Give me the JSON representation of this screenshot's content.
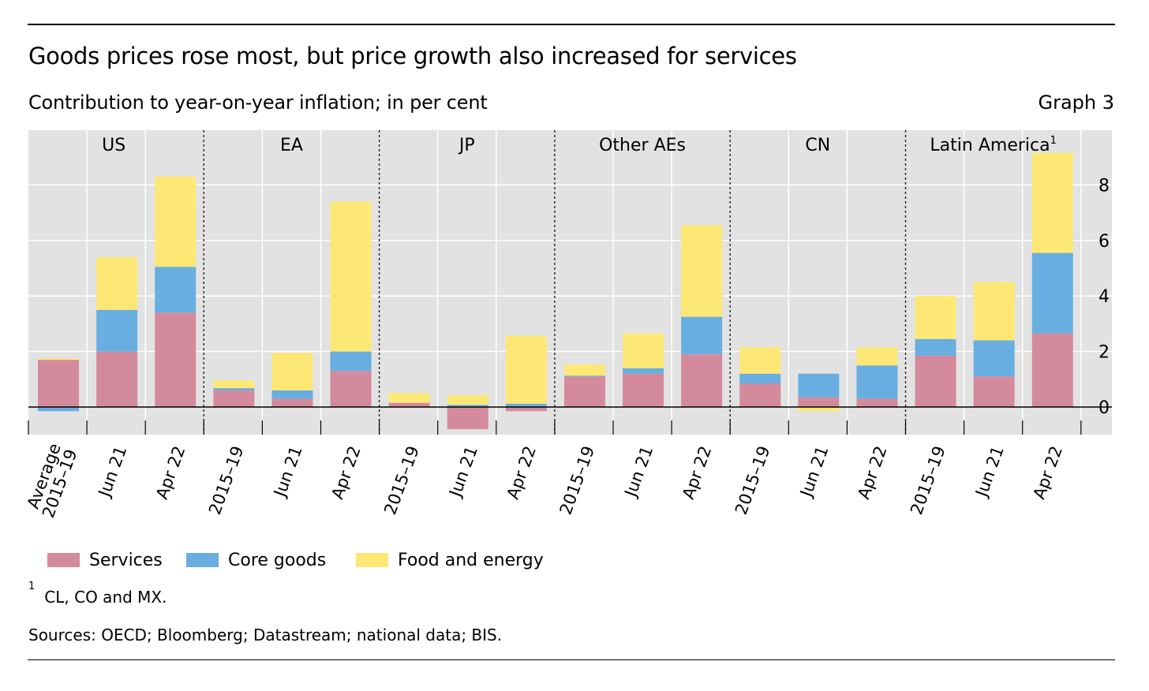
{
  "header": {
    "title": "Goods prices rose most, but price growth also increased for services",
    "subtitle": "Contribution to year-on-year inflation; in per cent",
    "graph_label": "Graph 3"
  },
  "legend": {
    "services": "Services",
    "core_goods": "Core goods",
    "food_energy": "Food and energy"
  },
  "footnote": {
    "mark": "1",
    "text": "CL, CO and MX."
  },
  "sources": "Sources: OECD; Bloomberg; Datastream; national data; BIS.",
  "colors": {
    "services": "#d48a9d",
    "core_goods": "#68aee0",
    "food_energy": "#fde876",
    "plot_bg": "#e2e2e2",
    "grid": "#ffffff"
  },
  "chart_data": {
    "type": "bar",
    "stacked": true,
    "title": "Goods prices rose most, but price growth also increased for services",
    "ylabel": "",
    "y_axis_position": "right",
    "ylim": [
      -1,
      10
    ],
    "yticks": [
      0,
      2,
      4,
      6,
      8
    ],
    "grid": true,
    "legend_position": "bottom",
    "groups": [
      {
        "name": "US",
        "footnote": ""
      },
      {
        "name": "EA",
        "footnote": ""
      },
      {
        "name": "JP",
        "footnote": ""
      },
      {
        "name": "Other AEs",
        "footnote": ""
      },
      {
        "name": "CN",
        "footnote": ""
      },
      {
        "name": "Latin America",
        "footnote": "1"
      }
    ],
    "categories": [
      "Average\n2015–19",
      "Jun 21",
      "Apr 22",
      "2015–19",
      "Jun 21",
      "Apr 22",
      "2015–19",
      "Jun 21",
      "Apr 22",
      "2015–19",
      "Jun 21",
      "Apr 22",
      "2015–19",
      "Jun 21",
      "Apr 22",
      "2015–19",
      "Jun 21",
      "Apr 22"
    ],
    "series": [
      {
        "name": "Services",
        "values": [
          1.7,
          2.0,
          3.4,
          0.6,
          0.3,
          1.3,
          0.15,
          -0.8,
          -0.15,
          1.1,
          1.2,
          1.9,
          0.85,
          0.35,
          0.3,
          1.85,
          1.1,
          2.65
        ]
      },
      {
        "name": "Core goods",
        "values": [
          -0.15,
          1.5,
          1.65,
          0.08,
          0.3,
          0.7,
          0.0,
          0.08,
          0.12,
          0.03,
          0.2,
          1.35,
          0.35,
          0.85,
          1.2,
          0.6,
          1.3,
          2.9
        ]
      },
      {
        "name": "Food and energy",
        "values": [
          0.05,
          1.9,
          3.25,
          0.28,
          1.35,
          5.4,
          0.35,
          0.35,
          2.45,
          0.4,
          1.25,
          3.3,
          0.95,
          -0.15,
          0.65,
          1.55,
          2.1,
          3.6
        ]
      }
    ]
  }
}
